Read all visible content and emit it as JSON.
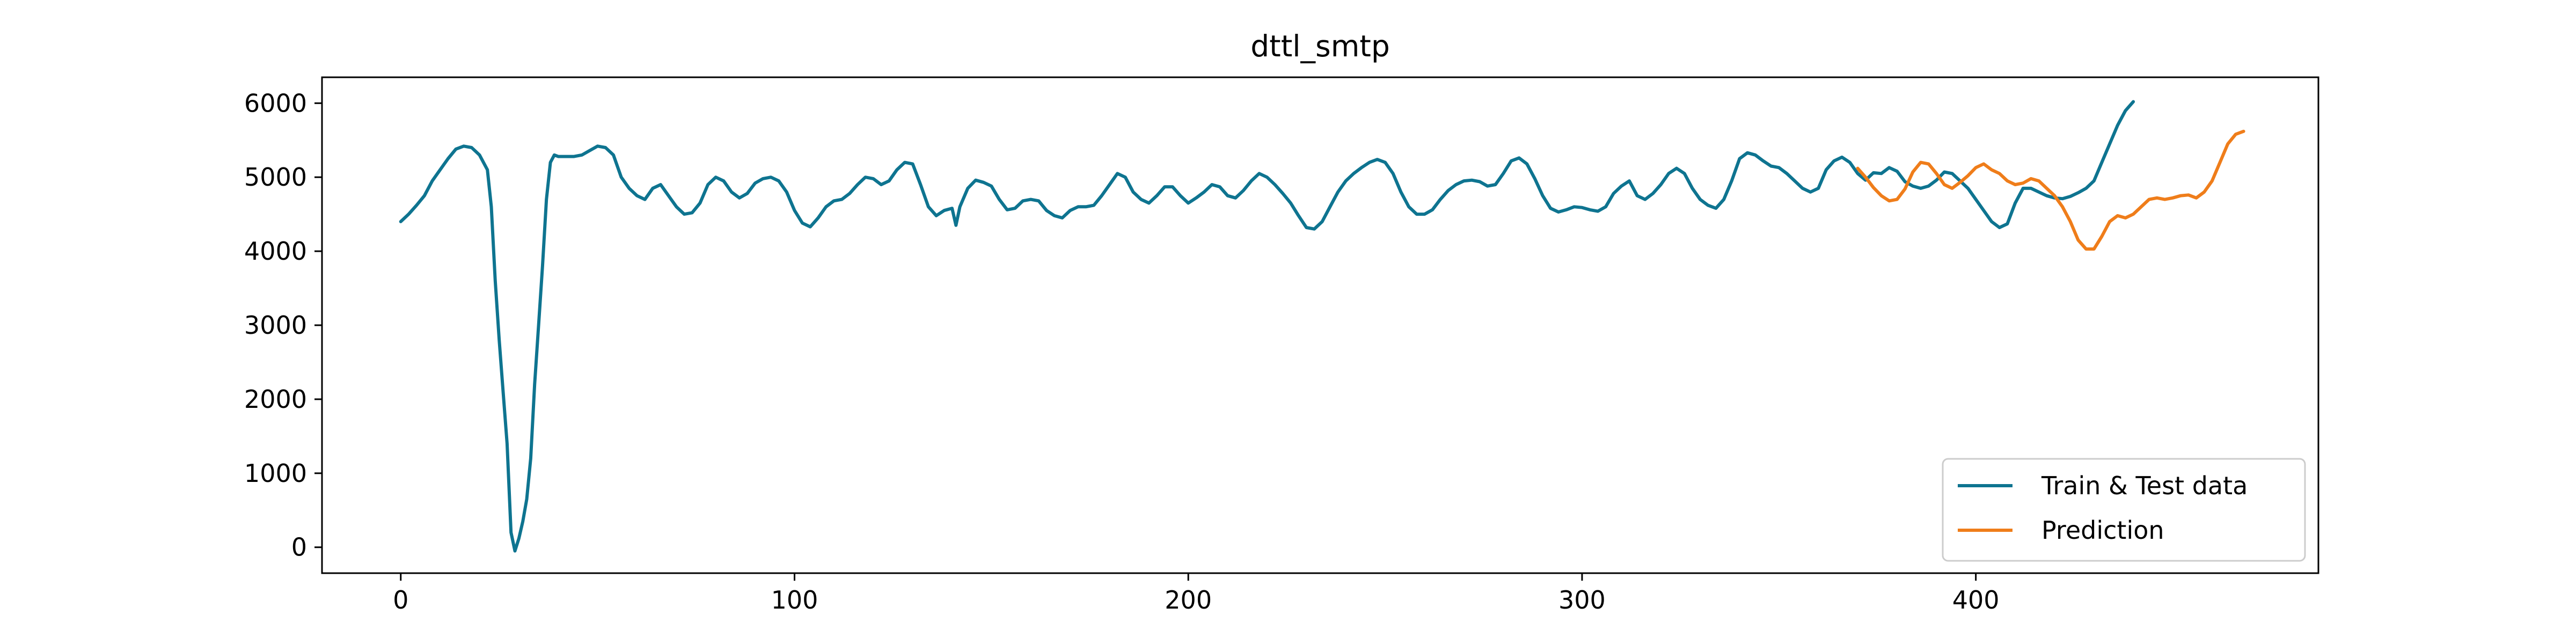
{
  "chart_data": {
    "type": "line",
    "title": "dttl_smtp",
    "xlabel": "",
    "ylabel": "",
    "xlim": [
      -20,
      487
    ],
    "ylim": [
      -350,
      6350
    ],
    "x_ticks": [
      0,
      100,
      200,
      300,
      400
    ],
    "y_ticks": [
      0,
      1000,
      2000,
      3000,
      4000,
      5000,
      6000
    ],
    "x_tick_labels": [
      "0",
      "100",
      "200",
      "300",
      "400"
    ],
    "y_tick_labels": [
      "0",
      "1000",
      "2000",
      "3000",
      "4000",
      "5000",
      "6000"
    ],
    "grid": false,
    "legend_position": "lower-right",
    "series": [
      {
        "name": "Train & Test data",
        "color": "#0e7490",
        "points": [
          [
            0,
            4400
          ],
          [
            2,
            4500
          ],
          [
            4,
            4620
          ],
          [
            6,
            4750
          ],
          [
            8,
            4950
          ],
          [
            10,
            5100
          ],
          [
            12,
            5250
          ],
          [
            14,
            5380
          ],
          [
            16,
            5420
          ],
          [
            18,
            5400
          ],
          [
            20,
            5300
          ],
          [
            22,
            5100
          ],
          [
            23,
            4600
          ],
          [
            24,
            3600
          ],
          [
            25,
            2800
          ],
          [
            26,
            2100
          ],
          [
            27,
            1400
          ],
          [
            28,
            200
          ],
          [
            29,
            -50
          ],
          [
            30,
            120
          ],
          [
            31,
            350
          ],
          [
            32,
            650
          ],
          [
            33,
            1200
          ],
          [
            34,
            2200
          ],
          [
            35,
            3000
          ],
          [
            36,
            3800
          ],
          [
            37,
            4700
          ],
          [
            38,
            5200
          ],
          [
            39,
            5300
          ],
          [
            40,
            5280
          ],
          [
            42,
            5280
          ],
          [
            44,
            5280
          ],
          [
            46,
            5300
          ],
          [
            48,
            5360
          ],
          [
            50,
            5420
          ],
          [
            52,
            5400
          ],
          [
            54,
            5300
          ],
          [
            56,
            5000
          ],
          [
            58,
            4850
          ],
          [
            60,
            4750
          ],
          [
            62,
            4700
          ],
          [
            64,
            4850
          ],
          [
            66,
            4900
          ],
          [
            68,
            4750
          ],
          [
            70,
            4600
          ],
          [
            72,
            4500
          ],
          [
            74,
            4520
          ],
          [
            76,
            4650
          ],
          [
            78,
            4900
          ],
          [
            80,
            5000
          ],
          [
            82,
            4950
          ],
          [
            84,
            4800
          ],
          [
            86,
            4720
          ],
          [
            88,
            4780
          ],
          [
            90,
            4920
          ],
          [
            92,
            4980
          ],
          [
            94,
            5000
          ],
          [
            96,
            4950
          ],
          [
            98,
            4800
          ],
          [
            100,
            4550
          ],
          [
            102,
            4380
          ],
          [
            104,
            4330
          ],
          [
            106,
            4450
          ],
          [
            108,
            4600
          ],
          [
            110,
            4680
          ],
          [
            112,
            4700
          ],
          [
            114,
            4780
          ],
          [
            116,
            4900
          ],
          [
            118,
            5000
          ],
          [
            120,
            4980
          ],
          [
            122,
            4900
          ],
          [
            124,
            4950
          ],
          [
            126,
            5100
          ],
          [
            128,
            5200
          ],
          [
            130,
            5180
          ],
          [
            132,
            4900
          ],
          [
            134,
            4600
          ],
          [
            136,
            4480
          ],
          [
            138,
            4550
          ],
          [
            140,
            4580
          ],
          [
            141,
            4350
          ],
          [
            142,
            4600
          ],
          [
            144,
            4850
          ],
          [
            146,
            4960
          ],
          [
            148,
            4930
          ],
          [
            150,
            4880
          ],
          [
            152,
            4700
          ],
          [
            154,
            4560
          ],
          [
            156,
            4580
          ],
          [
            158,
            4680
          ],
          [
            160,
            4700
          ],
          [
            162,
            4680
          ],
          [
            164,
            4550
          ],
          [
            166,
            4480
          ],
          [
            168,
            4450
          ],
          [
            170,
            4550
          ],
          [
            172,
            4600
          ],
          [
            174,
            4600
          ],
          [
            176,
            4620
          ],
          [
            178,
            4750
          ],
          [
            180,
            4900
          ],
          [
            182,
            5050
          ],
          [
            184,
            5000
          ],
          [
            186,
            4800
          ],
          [
            188,
            4700
          ],
          [
            190,
            4650
          ],
          [
            192,
            4750
          ],
          [
            194,
            4870
          ],
          [
            196,
            4870
          ],
          [
            198,
            4750
          ],
          [
            200,
            4650
          ],
          [
            202,
            4720
          ],
          [
            204,
            4800
          ],
          [
            206,
            4900
          ],
          [
            208,
            4870
          ],
          [
            210,
            4750
          ],
          [
            212,
            4720
          ],
          [
            214,
            4820
          ],
          [
            216,
            4950
          ],
          [
            218,
            5050
          ],
          [
            220,
            5000
          ],
          [
            222,
            4900
          ],
          [
            224,
            4780
          ],
          [
            226,
            4650
          ],
          [
            228,
            4480
          ],
          [
            230,
            4320
          ],
          [
            232,
            4300
          ],
          [
            234,
            4400
          ],
          [
            236,
            4600
          ],
          [
            238,
            4800
          ],
          [
            240,
            4950
          ],
          [
            242,
            5050
          ],
          [
            244,
            5130
          ],
          [
            246,
            5200
          ],
          [
            248,
            5240
          ],
          [
            250,
            5200
          ],
          [
            252,
            5050
          ],
          [
            254,
            4800
          ],
          [
            256,
            4600
          ],
          [
            258,
            4500
          ],
          [
            260,
            4500
          ],
          [
            262,
            4560
          ],
          [
            264,
            4700
          ],
          [
            266,
            4820
          ],
          [
            268,
            4900
          ],
          [
            270,
            4950
          ],
          [
            272,
            4960
          ],
          [
            274,
            4940
          ],
          [
            276,
            4880
          ],
          [
            278,
            4900
          ],
          [
            280,
            5050
          ],
          [
            282,
            5220
          ],
          [
            284,
            5260
          ],
          [
            286,
            5180
          ],
          [
            288,
            4980
          ],
          [
            290,
            4750
          ],
          [
            292,
            4580
          ],
          [
            294,
            4530
          ],
          [
            296,
            4560
          ],
          [
            298,
            4600
          ],
          [
            300,
            4590
          ],
          [
            302,
            4560
          ],
          [
            304,
            4540
          ],
          [
            306,
            4600
          ],
          [
            308,
            4780
          ],
          [
            310,
            4880
          ],
          [
            312,
            4950
          ],
          [
            314,
            4750
          ],
          [
            316,
            4700
          ],
          [
            318,
            4780
          ],
          [
            320,
            4900
          ],
          [
            322,
            5050
          ],
          [
            324,
            5120
          ],
          [
            326,
            5050
          ],
          [
            328,
            4850
          ],
          [
            330,
            4700
          ],
          [
            332,
            4620
          ],
          [
            334,
            4580
          ],
          [
            336,
            4700
          ],
          [
            338,
            4950
          ],
          [
            340,
            5250
          ],
          [
            342,
            5330
          ],
          [
            344,
            5300
          ],
          [
            346,
            5220
          ],
          [
            348,
            5150
          ],
          [
            350,
            5130
          ],
          [
            352,
            5050
          ],
          [
            354,
            4950
          ],
          [
            356,
            4850
          ],
          [
            358,
            4800
          ],
          [
            360,
            4850
          ],
          [
            362,
            5100
          ],
          [
            364,
            5220
          ],
          [
            366,
            5270
          ],
          [
            368,
            5200
          ],
          [
            370,
            5050
          ],
          [
            372,
            4960
          ],
          [
            374,
            5060
          ],
          [
            376,
            5050
          ],
          [
            378,
            5130
          ],
          [
            380,
            5080
          ],
          [
            382,
            4940
          ],
          [
            384,
            4880
          ],
          [
            386,
            4850
          ],
          [
            388,
            4880
          ],
          [
            390,
            4960
          ],
          [
            392,
            5070
          ],
          [
            394,
            5050
          ],
          [
            396,
            4950
          ],
          [
            398,
            4850
          ],
          [
            400,
            4700
          ],
          [
            402,
            4550
          ],
          [
            404,
            4400
          ],
          [
            406,
            4320
          ],
          [
            408,
            4370
          ],
          [
            410,
            4650
          ],
          [
            412,
            4850
          ],
          [
            414,
            4850
          ],
          [
            416,
            4800
          ],
          [
            418,
            4750
          ],
          [
            420,
            4720
          ],
          [
            422,
            4710
          ],
          [
            424,
            4740
          ],
          [
            426,
            4790
          ],
          [
            428,
            4850
          ],
          [
            430,
            4950
          ],
          [
            432,
            5200
          ],
          [
            434,
            5450
          ],
          [
            436,
            5700
          ],
          [
            438,
            5900
          ],
          [
            440,
            6020
          ]
        ]
      },
      {
        "name": "Prediction",
        "color": "#ef7d1a",
        "points": [
          [
            370,
            5120
          ],
          [
            372,
            5000
          ],
          [
            374,
            4860
          ],
          [
            376,
            4750
          ],
          [
            378,
            4680
          ],
          [
            380,
            4700
          ],
          [
            382,
            4840
          ],
          [
            384,
            5070
          ],
          [
            386,
            5200
          ],
          [
            388,
            5180
          ],
          [
            390,
            5050
          ],
          [
            392,
            4900
          ],
          [
            394,
            4850
          ],
          [
            396,
            4930
          ],
          [
            398,
            5020
          ],
          [
            400,
            5130
          ],
          [
            402,
            5180
          ],
          [
            404,
            5100
          ],
          [
            406,
            5050
          ],
          [
            408,
            4950
          ],
          [
            410,
            4900
          ],
          [
            412,
            4920
          ],
          [
            414,
            4980
          ],
          [
            416,
            4950
          ],
          [
            418,
            4850
          ],
          [
            420,
            4750
          ],
          [
            422,
            4600
          ],
          [
            424,
            4400
          ],
          [
            426,
            4150
          ],
          [
            428,
            4030
          ],
          [
            430,
            4030
          ],
          [
            432,
            4200
          ],
          [
            434,
            4400
          ],
          [
            436,
            4480
          ],
          [
            438,
            4450
          ],
          [
            440,
            4500
          ],
          [
            442,
            4600
          ],
          [
            444,
            4700
          ],
          [
            446,
            4720
          ],
          [
            448,
            4700
          ],
          [
            450,
            4720
          ],
          [
            452,
            4750
          ],
          [
            454,
            4760
          ],
          [
            456,
            4720
          ],
          [
            458,
            4800
          ],
          [
            460,
            4950
          ],
          [
            462,
            5200
          ],
          [
            464,
            5450
          ],
          [
            466,
            5580
          ],
          [
            468,
            5620
          ]
        ]
      }
    ]
  }
}
